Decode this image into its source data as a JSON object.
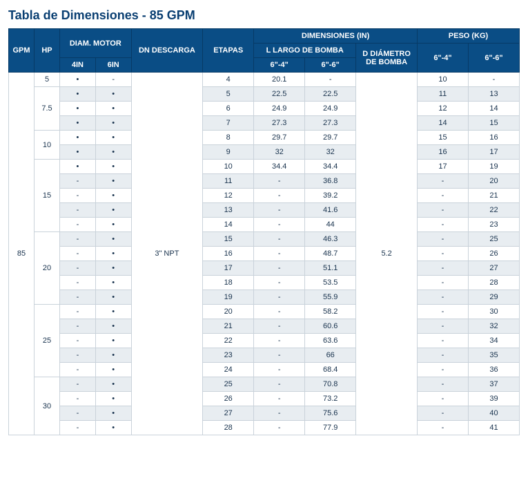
{
  "title": "Tabla de Dimensiones - 85 GPM",
  "headers": {
    "gpm": "GPM",
    "hp": "HP",
    "diam_motor": "DIAM. MOTOR",
    "diam_4in": "4IN",
    "diam_6in": "6IN",
    "dn_descarga": "DN DESCARGA",
    "etapas": "ETAPAS",
    "dimensiones": "DIMENSIONES (IN)",
    "l_largo": "L LARGO DE BOMBA",
    "l_64": "6\"-4\"",
    "l_66": "6\"-6\"",
    "d_diametro": "D DIÁMETRO DE BOMBA",
    "peso": "PESO (KG)",
    "p_64": "6\"-4\"",
    "p_66": "6\"-6\""
  },
  "merged": {
    "gpm": "85",
    "dn": "3\" NPT",
    "d": "5.2"
  },
  "hp_groups": [
    {
      "hp": "5",
      "span": 1
    },
    {
      "hp": "7.5",
      "span": 3
    },
    {
      "hp": "10",
      "span": 2
    },
    {
      "hp": "15",
      "span": 5
    },
    {
      "hp": "20",
      "span": 5
    },
    {
      "hp": "25",
      "span": 5
    },
    {
      "hp": "30",
      "span": 4
    }
  ],
  "rows": [
    {
      "d4": "•",
      "d6": "-",
      "et": "4",
      "l64": "20.1",
      "l66": "-",
      "p64": "10",
      "p66": "-"
    },
    {
      "d4": "•",
      "d6": "•",
      "et": "5",
      "l64": "22.5",
      "l66": "22.5",
      "p64": "11",
      "p66": "13"
    },
    {
      "d4": "•",
      "d6": "•",
      "et": "6",
      "l64": "24.9",
      "l66": "24.9",
      "p64": "12",
      "p66": "14"
    },
    {
      "d4": "•",
      "d6": "•",
      "et": "7",
      "l64": "27.3",
      "l66": "27.3",
      "p64": "14",
      "p66": "15"
    },
    {
      "d4": "•",
      "d6": "•",
      "et": "8",
      "l64": "29.7",
      "l66": "29.7",
      "p64": "15",
      "p66": "16"
    },
    {
      "d4": "•",
      "d6": "•",
      "et": "9",
      "l64": "32",
      "l66": "32",
      "p64": "16",
      "p66": "17"
    },
    {
      "d4": "•",
      "d6": "•",
      "et": "10",
      "l64": "34.4",
      "l66": "34.4",
      "p64": "17",
      "p66": "19"
    },
    {
      "d4": "-",
      "d6": "•",
      "et": "11",
      "l64": "-",
      "l66": "36.8",
      "p64": "-",
      "p66": "20"
    },
    {
      "d4": "-",
      "d6": "•",
      "et": "12",
      "l64": "-",
      "l66": "39.2",
      "p64": "-",
      "p66": "21"
    },
    {
      "d4": "-",
      "d6": "•",
      "et": "13",
      "l64": "-",
      "l66": "41.6",
      "p64": "-",
      "p66": "22"
    },
    {
      "d4": "-",
      "d6": "•",
      "et": "14",
      "l64": "-",
      "l66": "44",
      "p64": "-",
      "p66": "23"
    },
    {
      "d4": "-",
      "d6": "•",
      "et": "15",
      "l64": "-",
      "l66": "46.3",
      "p64": "-",
      "p66": "25"
    },
    {
      "d4": "-",
      "d6": "•",
      "et": "16",
      "l64": "-",
      "l66": "48.7",
      "p64": "-",
      "p66": "26"
    },
    {
      "d4": "-",
      "d6": "•",
      "et": "17",
      "l64": "-",
      "l66": "51.1",
      "p64": "-",
      "p66": "27"
    },
    {
      "d4": "-",
      "d6": "•",
      "et": "18",
      "l64": "-",
      "l66": "53.5",
      "p64": "-",
      "p66": "28"
    },
    {
      "d4": "-",
      "d6": "•",
      "et": "19",
      "l64": "-",
      "l66": "55.9",
      "p64": "-",
      "p66": "29"
    },
    {
      "d4": "-",
      "d6": "•",
      "et": "20",
      "l64": "-",
      "l66": "58.2",
      "p64": "-",
      "p66": "30"
    },
    {
      "d4": "-",
      "d6": "•",
      "et": "21",
      "l64": "-",
      "l66": "60.6",
      "p64": "-",
      "p66": "32"
    },
    {
      "d4": "-",
      "d6": "•",
      "et": "22",
      "l64": "-",
      "l66": "63.6",
      "p64": "-",
      "p66": "34"
    },
    {
      "d4": "-",
      "d6": "•",
      "et": "23",
      "l64": "-",
      "l66": "66",
      "p64": "-",
      "p66": "35"
    },
    {
      "d4": "-",
      "d6": "•",
      "et": "24",
      "l64": "-",
      "l66": "68.4",
      "p64": "-",
      "p66": "36"
    },
    {
      "d4": "-",
      "d6": "•",
      "et": "25",
      "l64": "-",
      "l66": "70.8",
      "p64": "-",
      "p66": "37"
    },
    {
      "d4": "-",
      "d6": "•",
      "et": "26",
      "l64": "-",
      "l66": "73.2",
      "p64": "-",
      "p66": "39"
    },
    {
      "d4": "-",
      "d6": "•",
      "et": "27",
      "l64": "-",
      "l66": "75.6",
      "p64": "-",
      "p66": "40"
    },
    {
      "d4": "-",
      "d6": "•",
      "et": "28",
      "l64": "-",
      "l66": "77.9",
      "p64": "-",
      "p66": "41"
    }
  ]
}
